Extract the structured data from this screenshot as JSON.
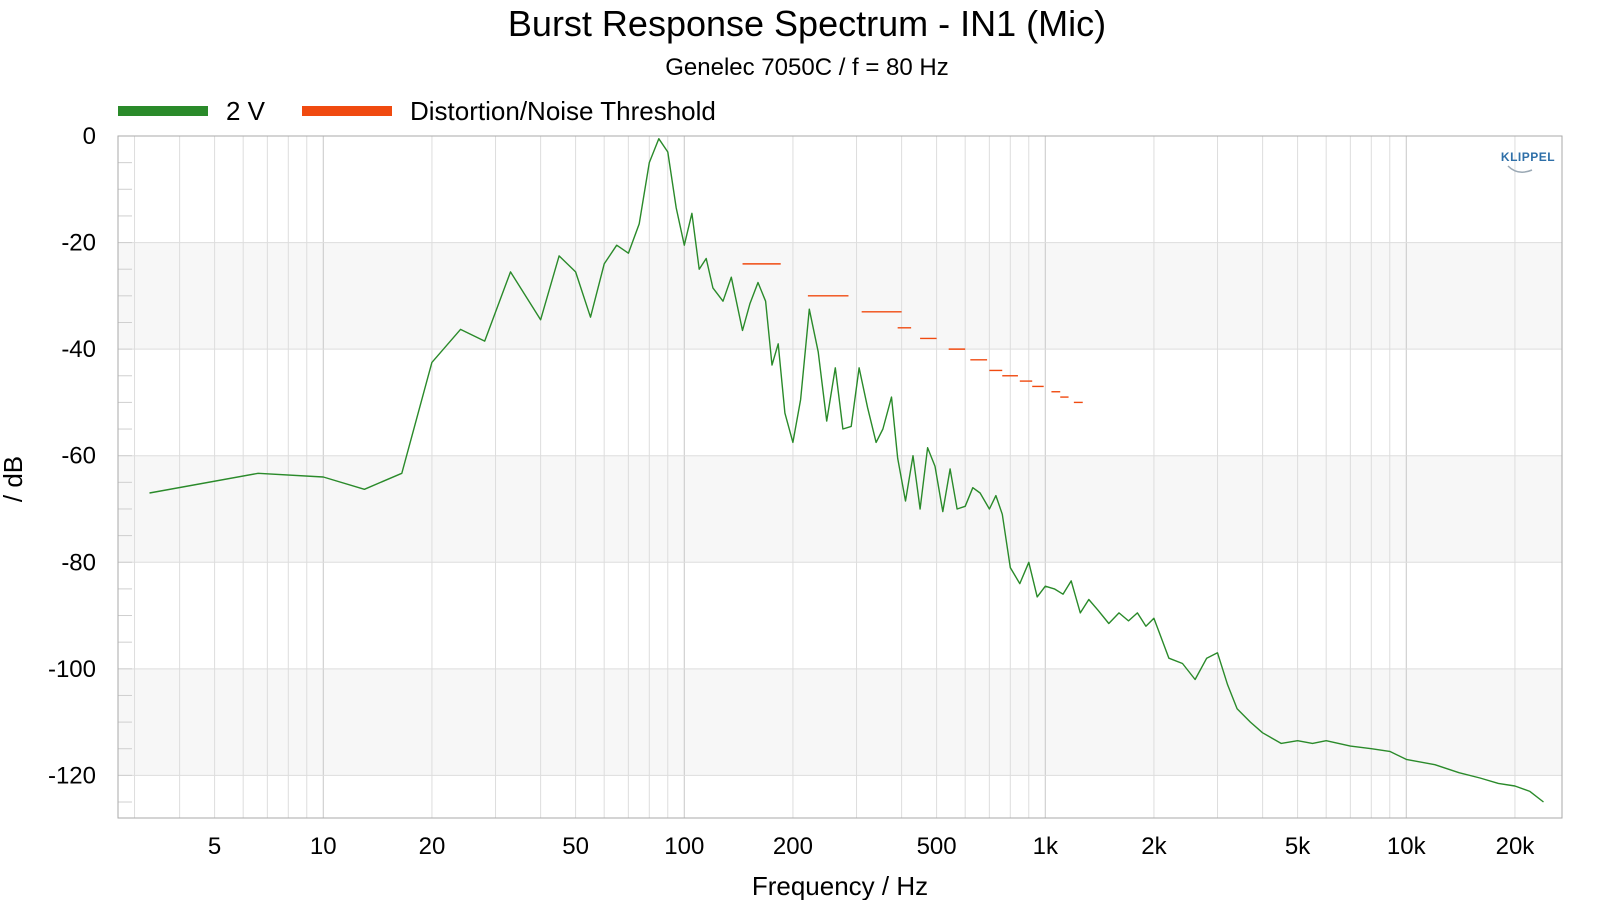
{
  "chart_data": {
    "type": "line",
    "title": "Burst Response Spectrum - IN1 (Mic)",
    "subtitle": "Genelec 7050C / f = 80 Hz",
    "xlabel": "Frequency / Hz",
    "ylabel": "/ dB",
    "x_scale": "log",
    "xlim": [
      2.7,
      27000
    ],
    "ylim": [
      -128,
      0
    ],
    "x_ticks": [
      5,
      10,
      20,
      50,
      100,
      200,
      500,
      1000,
      2000,
      5000,
      10000,
      20000
    ],
    "x_tick_labels": [
      "5",
      "10",
      "20",
      "50",
      "100",
      "200",
      "500",
      "1k",
      "2k",
      "5k",
      "10k",
      "20k"
    ],
    "y_ticks": [
      0,
      -20,
      -40,
      -60,
      -80,
      -100,
      -120
    ],
    "y_tick_labels": [
      "0",
      "-20",
      "-40",
      "-60",
      "-80",
      "-100",
      "-120"
    ],
    "grid": true,
    "legend_position": "top-left",
    "logo": "KLIPPEL",
    "colors": {
      "response": "#2a8a2a",
      "threshold": "#f04a10",
      "band": "#f7f7f7",
      "grid": "#dddddd"
    },
    "series": [
      {
        "name": "2 V",
        "style": "line",
        "x": [
          3.3,
          6.6,
          10,
          13,
          16.5,
          20,
          24,
          28,
          33,
          40,
          45,
          50,
          55,
          60,
          65,
          70,
          75,
          80,
          85,
          90,
          95,
          100,
          105,
          110,
          115,
          120,
          128,
          135,
          145,
          152,
          160,
          168,
          175,
          182,
          190,
          200,
          210,
          222,
          235,
          248,
          262,
          275,
          290,
          305,
          322,
          340,
          355,
          375,
          390,
          410,
          430,
          450,
          472,
          495,
          520,
          545,
          570,
          600,
          630,
          660,
          700,
          730,
          760,
          800,
          850,
          900,
          950,
          1000,
          1060,
          1120,
          1180,
          1250,
          1320,
          1400,
          1500,
          1600,
          1700,
          1800,
          1900,
          2000,
          2200,
          2400,
          2600,
          2800,
          3000,
          3200,
          3400,
          3700,
          4000,
          4500,
          5000,
          5500,
          6000,
          7000,
          8000,
          9000,
          10000,
          12000,
          14000,
          16000,
          18000,
          20000,
          22000,
          24000
        ],
        "y": [
          -67,
          -63.3,
          -64,
          -66.3,
          -63.3,
          -42.5,
          -36.3,
          -38.5,
          -25.5,
          -34.5,
          -22.5,
          -25.5,
          -34,
          -24,
          -20.5,
          -22,
          -16.5,
          -5,
          -0.5,
          -3,
          -13.5,
          -20.5,
          -14.5,
          -25,
          -23,
          -28.5,
          -31,
          -26.5,
          -36.5,
          -31.5,
          -27.5,
          -31,
          -43,
          -39,
          -52,
          -57.5,
          -49.5,
          -32.5,
          -40.5,
          -53.5,
          -43.5,
          -55,
          -54.5,
          -43.5,
          -51,
          -57.5,
          -55,
          -49,
          -60.5,
          -68.5,
          -60,
          -70,
          -58.5,
          -62,
          -70.5,
          -62.5,
          -70,
          -69.5,
          -66,
          -67,
          -70,
          -67.5,
          -71,
          -81,
          -84,
          -80,
          -86.5,
          -84.5,
          -85,
          -86,
          -83.5,
          -89.5,
          -87,
          -89,
          -91.5,
          -89.5,
          -91,
          -89.5,
          -92,
          -90.5,
          -98,
          -99,
          -102,
          -98,
          -97,
          -103,
          -107.5,
          -110,
          -112,
          -114,
          -113.5,
          -114,
          -113.5,
          -114.5,
          -115,
          -115.5,
          -117,
          -118,
          -119.5,
          -120.5,
          -121.5,
          -122,
          -123,
          -125
        ]
      },
      {
        "name": "Distortion/Noise Threshold",
        "style": "segments",
        "segments": [
          [
            145,
            185,
            -24
          ],
          [
            220,
            285,
            -30
          ],
          [
            310,
            400,
            -33
          ],
          [
            390,
            425,
            -36
          ],
          [
            450,
            500,
            -38
          ],
          [
            540,
            600,
            -40
          ],
          [
            620,
            690,
            -42
          ],
          [
            700,
            760,
            -44
          ],
          [
            760,
            840,
            -45
          ],
          [
            850,
            920,
            -46
          ],
          [
            920,
            990,
            -47
          ],
          [
            1040,
            1100,
            -48
          ],
          [
            1100,
            1160,
            -49
          ],
          [
            1200,
            1270,
            -50
          ]
        ]
      }
    ]
  }
}
